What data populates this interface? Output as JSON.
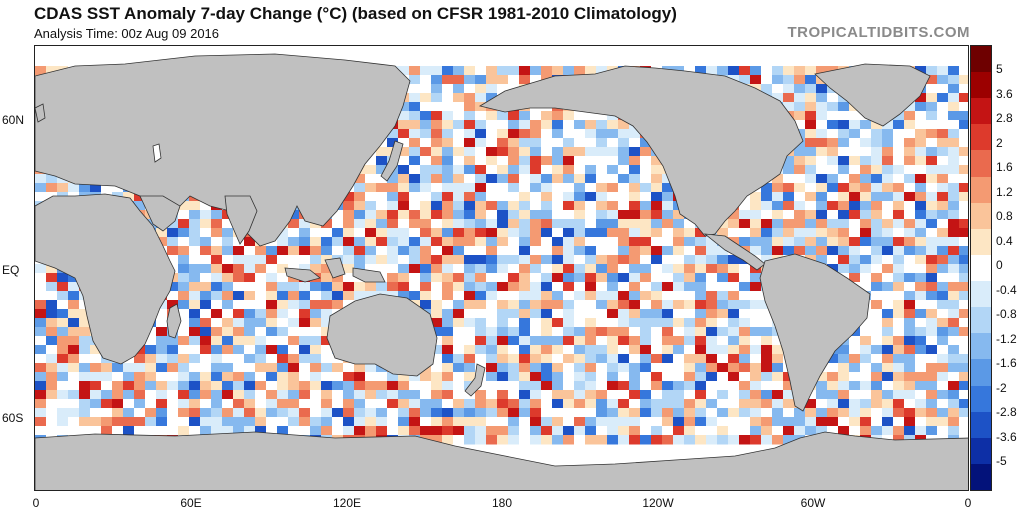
{
  "header": {
    "title": "CDAS SST Anomaly 7-day Change (°C) (based on CFSR 1981-2010 Climatology)",
    "subtitle": "Analysis Time: 00z Aug 09 2016",
    "credit": "TROPICALTIDBITS.COM"
  },
  "map": {
    "projection": "equirectangular, 0 to 360 longitude",
    "lat_labels": [
      "60N",
      "EQ",
      "60S"
    ],
    "lon_labels": [
      "0",
      "60E",
      "120E",
      "180",
      "120W",
      "60W",
      "0"
    ],
    "land_color": "#c0c0c0",
    "ocean_default_color": "#ffffff"
  },
  "colorbar": {
    "labels": [
      "5",
      "3.6",
      "2.8",
      "2",
      "1.6",
      "1.2",
      "0.8",
      "0.4",
      "0",
      "-0.4",
      "-0.8",
      "-1.2",
      "-1.6",
      "-2",
      "-2.8",
      "-3.6",
      "-5"
    ],
    "colors": [
      "#6e0000",
      "#9c0000",
      "#c41414",
      "#dd3a2c",
      "#ea6a4e",
      "#f49a72",
      "#fac49a",
      "#fde6c4",
      "#ffffff",
      "#d9ecfa",
      "#b2d6f6",
      "#86b9ef",
      "#5b99e6",
      "#3677dc",
      "#1d52c6",
      "#0d2fa6",
      "#03127a"
    ]
  }
}
